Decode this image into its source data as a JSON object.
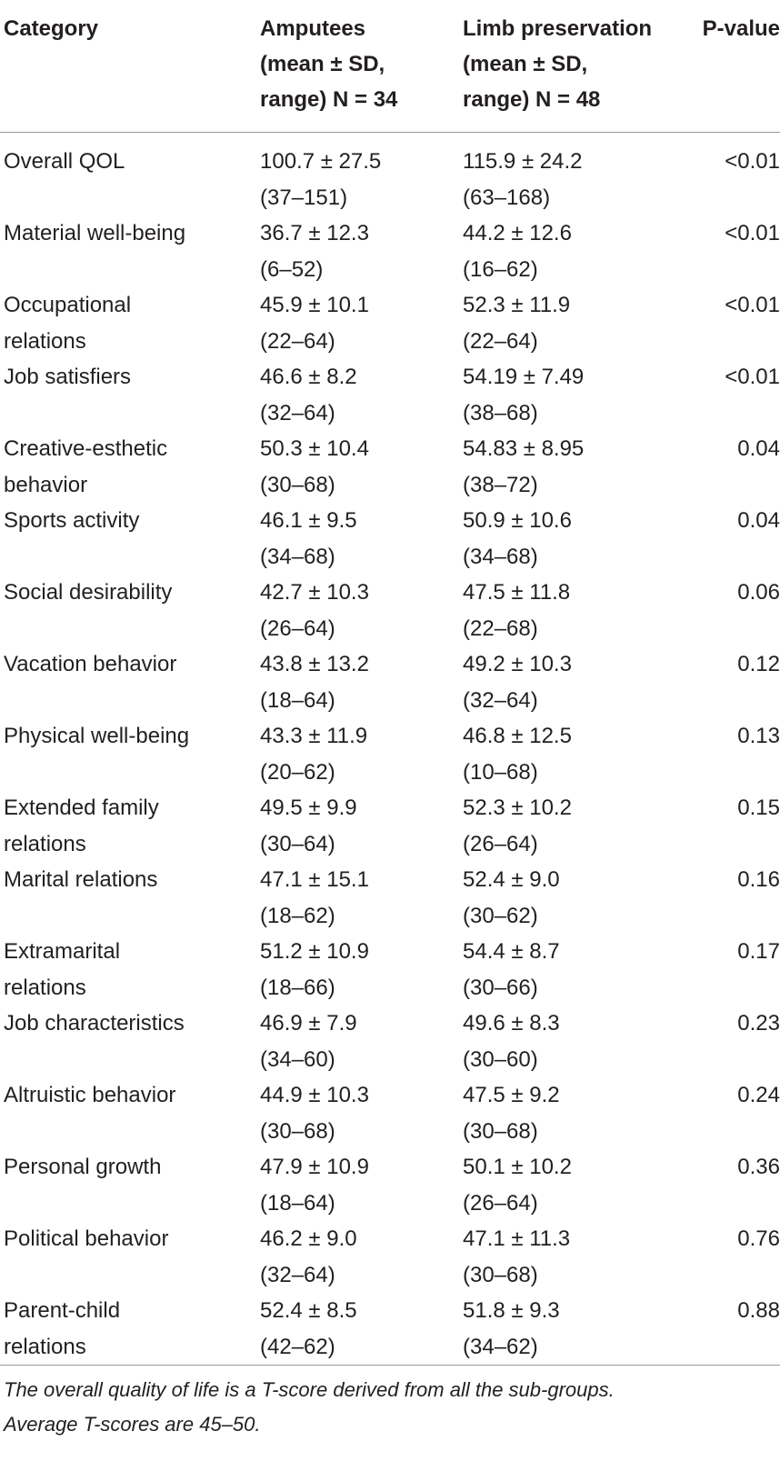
{
  "header": {
    "category": "Category",
    "amputees": [
      "Amputees",
      "(mean ± SD,",
      "range) N = 34"
    ],
    "limb": [
      "Limb preservation",
      "(mean ± SD,",
      "range) N = 48"
    ],
    "pvalue": "P-value"
  },
  "rows": [
    {
      "category": [
        "Overall QOL"
      ],
      "amp_mean": "100.7 ± 27.5",
      "amp_range": "(37–151)",
      "limb_mean": "115.9 ± 24.2",
      "limb_range": "(63–168)",
      "p": "<0.01"
    },
    {
      "category": [
        "Material well-being"
      ],
      "amp_mean": "36.7 ± 12.3",
      "amp_range": "(6–52)",
      "limb_mean": "44.2 ± 12.6",
      "limb_range": "(16–62)",
      "p": "<0.01"
    },
    {
      "category": [
        "Occupational",
        "relations"
      ],
      "amp_mean": "45.9 ± 10.1",
      "amp_range": "(22–64)",
      "limb_mean": "52.3 ± 11.9",
      "limb_range": "(22–64)",
      "p": "<0.01"
    },
    {
      "category": [
        "Job satisfiers"
      ],
      "amp_mean": "46.6 ± 8.2",
      "amp_range": "(32–64)",
      "limb_mean": "54.19 ± 7.49",
      "limb_range": "(38–68)",
      "p": "<0.01"
    },
    {
      "category": [
        "Creative-esthetic",
        "behavior"
      ],
      "amp_mean": "50.3 ± 10.4",
      "amp_range": "(30–68)",
      "limb_mean": "54.83 ± 8.95",
      "limb_range": "(38–72)",
      "p": "0.04"
    },
    {
      "category": [
        "Sports activity"
      ],
      "amp_mean": "46.1 ± 9.5",
      "amp_range": "(34–68)",
      "limb_mean": "50.9 ± 10.6",
      "limb_range": "(34–68)",
      "p": "0.04"
    },
    {
      "category": [
        "Social desirability"
      ],
      "amp_mean": "42.7 ± 10.3",
      "amp_range": "(26–64)",
      "limb_mean": "47.5 ± 11.8",
      "limb_range": "(22–68)",
      "p": "0.06"
    },
    {
      "category": [
        "Vacation behavior"
      ],
      "amp_mean": "43.8 ± 13.2",
      "amp_range": "(18–64)",
      "limb_mean": "49.2 ± 10.3",
      "limb_range": "(32–64)",
      "p": "0.12"
    },
    {
      "category": [
        "Physical well-being"
      ],
      "amp_mean": "43.3 ± 11.9",
      "amp_range": "(20–62)",
      "limb_mean": "46.8 ± 12.5",
      "limb_range": "(10–68)",
      "p": "0.13"
    },
    {
      "category": [
        "Extended family",
        "relations"
      ],
      "amp_mean": "49.5 ± 9.9",
      "amp_range": "(30–64)",
      "limb_mean": "52.3 ± 10.2",
      "limb_range": "(26–64)",
      "p": "0.15"
    },
    {
      "category": [
        "Marital relations"
      ],
      "amp_mean": "47.1 ± 15.1",
      "amp_range": "(18–62)",
      "limb_mean": "52.4 ± 9.0",
      "limb_range": "(30–62)",
      "p": "0.16"
    },
    {
      "category": [
        "Extramarital",
        "relations"
      ],
      "amp_mean": "51.2 ± 10.9",
      "amp_range": "(18–66)",
      "limb_mean": "54.4 ± 8.7",
      "limb_range": "(30–66)",
      "p": "0.17"
    },
    {
      "category": [
        "Job characteristics"
      ],
      "amp_mean": "46.9 ± 7.9",
      "amp_range": "(34–60)",
      "limb_mean": "49.6 ± 8.3",
      "limb_range": "(30–60)",
      "p": "0.23"
    },
    {
      "category": [
        "Altruistic behavior"
      ],
      "amp_mean": "44.9 ± 10.3",
      "amp_range": "(30–68)",
      "limb_mean": "47.5 ± 9.2",
      "limb_range": "(30–68)",
      "p": "0.24"
    },
    {
      "category": [
        "Personal growth"
      ],
      "amp_mean": "47.9 ± 10.9",
      "amp_range": "(18–64)",
      "limb_mean": "50.1 ± 10.2",
      "limb_range": "(26–64)",
      "p": "0.36"
    },
    {
      "category": [
        "Political behavior"
      ],
      "amp_mean": "46.2 ± 9.0",
      "amp_range": "(32–64)",
      "limb_mean": "47.1 ± 11.3",
      "limb_range": "(30–68)",
      "p": "0.76"
    },
    {
      "category": [
        "Parent-child",
        "relations"
      ],
      "amp_mean": "52.4 ± 8.5",
      "amp_range": "(42–62)",
      "limb_mean": "51.8 ± 9.3",
      "limb_range": "(34–62)",
      "p": "0.88"
    }
  ],
  "footnote": [
    "The overall quality of life is a T-score derived from all the sub-groups.",
    "Average T-scores are 45–50."
  ]
}
